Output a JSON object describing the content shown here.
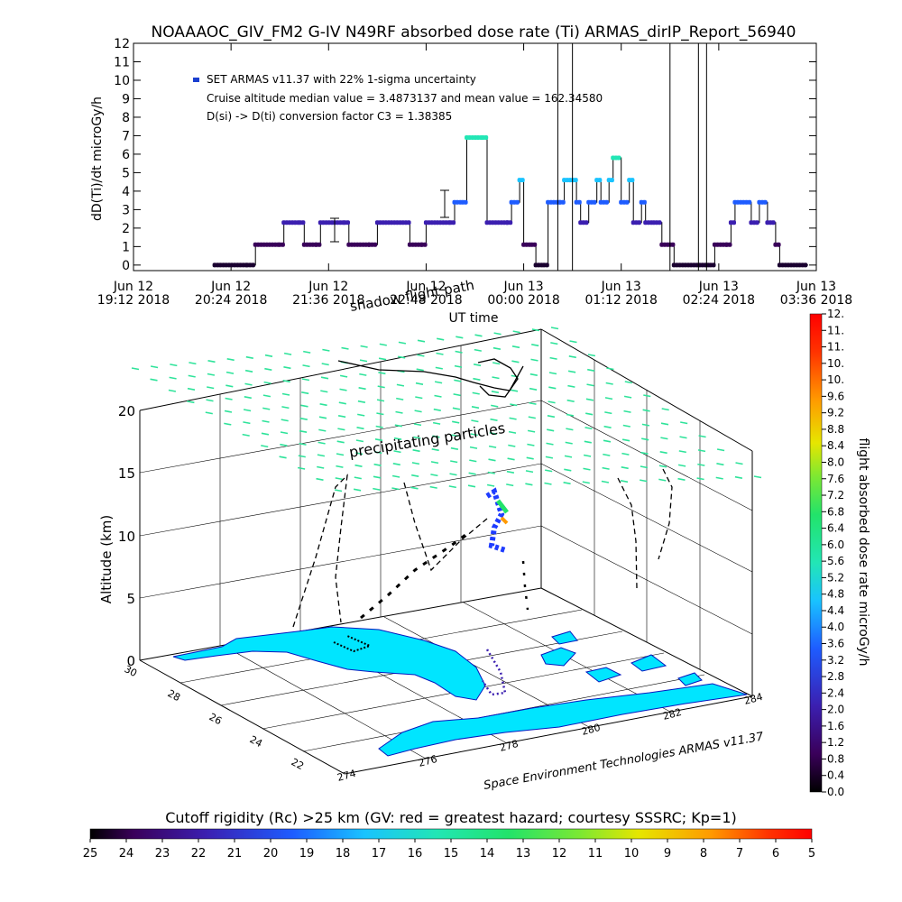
{
  "title": "NOAAAOC_GIV_FM2 G-IV    N49RF  absorbed dose rate (Ti) ARMAS_dirIP_Report_56940",
  "top_chart": {
    "ylabel": "dD(Ti)/dt microGy/h",
    "xlabel": "UT time",
    "legend": "SET ARMAS v11.37 with 22% 1-sigma uncertainty",
    "info_line1": "Cruise altitude median value = 3.4873137 and mean value = 162.34580",
    "info_line2": "D(si) -> D(ti) conversion factor C3 = 1.38385",
    "y_ticks": [
      "0",
      "1",
      "2",
      "3",
      "4",
      "5",
      "6",
      "7",
      "8",
      "9",
      "10",
      "11",
      "12"
    ],
    "x_ticks": [
      {
        "date": "Jun 12",
        "time": "19:12 2018"
      },
      {
        "date": "Jun 12",
        "time": "20:24 2018"
      },
      {
        "date": "Jun 12",
        "time": "21:36 2018"
      },
      {
        "date": "Jun 12",
        "time": "22:48 2018"
      },
      {
        "date": "Jun 13",
        "time": "00:00 2018"
      },
      {
        "date": "Jun 13",
        "time": "01:12 2018"
      },
      {
        "date": "Jun 13",
        "time": "02:24 2018"
      },
      {
        "date": "Jun 13",
        "time": "03:36 2018"
      }
    ]
  },
  "chart_data": {
    "type": "line",
    "title": "NOAAAOC_GIV_FM2 G-IV    N49RF  absorbed dose rate (Ti) ARMAS_dirIP_Report_56940",
    "xlabel": "UT time",
    "ylabel": "dD(Ti)/dt microGy/h",
    "x_unit": "hours UT from Jun 12 00:00 2018",
    "xlim": [
      19.2,
      27.6
    ],
    "ylim": [
      -0.3,
      12
    ],
    "series": [
      {
        "name": "SET ARMAS v11.37 with 22% 1-sigma uncertainty",
        "steps": [
          [
            20.2,
            0
          ],
          [
            20.6,
            0
          ],
          [
            20.7,
            1.1
          ],
          [
            21.0,
            1.1
          ],
          [
            21.05,
            2.3
          ],
          [
            21.25,
            2.3
          ],
          [
            21.3,
            1.1
          ],
          [
            21.45,
            1.1
          ],
          [
            21.5,
            2.3
          ],
          [
            21.8,
            2.3
          ],
          [
            21.85,
            1.1
          ],
          [
            22.1,
            1.1
          ],
          [
            22.2,
            2.3
          ],
          [
            22.55,
            2.3
          ],
          [
            22.6,
            1.1
          ],
          [
            22.75,
            1.1
          ],
          [
            22.8,
            2.3
          ],
          [
            23.1,
            2.3
          ],
          [
            23.15,
            3.4
          ],
          [
            23.25,
            3.4
          ],
          [
            23.3,
            6.9
          ],
          [
            23.5,
            6.9
          ],
          [
            23.55,
            2.3
          ],
          [
            23.8,
            2.3
          ],
          [
            23.85,
            3.4
          ],
          [
            23.95,
            4.6
          ],
          [
            24.0,
            1.1
          ],
          [
            24.1,
            1.1
          ],
          [
            24.15,
            0
          ],
          [
            24.25,
            0
          ],
          [
            24.3,
            3.4
          ],
          [
            24.45,
            3.4
          ],
          [
            24.5,
            4.6
          ],
          [
            24.65,
            3.4
          ],
          [
            24.7,
            2.3
          ],
          [
            24.8,
            3.4
          ],
          [
            24.9,
            4.6
          ],
          [
            24.95,
            3.4
          ],
          [
            25.05,
            4.6
          ],
          [
            25.1,
            5.8
          ],
          [
            25.2,
            3.4
          ],
          [
            25.3,
            4.6
          ],
          [
            25.35,
            2.3
          ],
          [
            25.45,
            3.4
          ],
          [
            25.5,
            2.3
          ],
          [
            25.6,
            2.3
          ],
          [
            25.7,
            1.1
          ],
          [
            25.8,
            1.1
          ],
          [
            25.85,
            0
          ],
          [
            26.3,
            0
          ],
          [
            26.35,
            1.1
          ],
          [
            26.5,
            1.1
          ],
          [
            26.55,
            2.3
          ],
          [
            26.6,
            3.4
          ],
          [
            26.8,
            2.3
          ],
          [
            26.9,
            3.4
          ],
          [
            27.0,
            2.3
          ],
          [
            27.1,
            1.1
          ],
          [
            27.15,
            0
          ],
          [
            27.5,
            0
          ]
        ]
      }
    ],
    "spikes_x": [
      24.42,
      24.6,
      25.8,
      26.15,
      26.25
    ],
    "colorbar": {
      "label": "flight absorbed dose rate microGy/h",
      "ticks": [
        "0.0",
        "0.4",
        "0.8",
        "1.2",
        "1.6",
        "2.0",
        "2.4",
        "2.8",
        "3.2",
        "3.6",
        "4.0",
        "4.4",
        "4.8",
        "5.2",
        "5.6",
        "6.0",
        "6.4",
        "6.8",
        "7.2",
        "7.6",
        "8.0",
        "8.4",
        "8.8",
        "9.2",
        "9.6",
        "10.",
        "10.",
        "11.",
        "11.",
        "12."
      ]
    }
  },
  "map3d": {
    "shadow_label": "shadow flight path",
    "precip_label": "precipitating particles",
    "zlabel": "Altitude (km)",
    "z_ticks": [
      "0",
      "5",
      "10",
      "15",
      "20"
    ],
    "lat_ticks": [
      "30",
      "28",
      "26",
      "24",
      "22"
    ],
    "lon_ticks": [
      "274",
      "276",
      "278",
      "280",
      "282",
      "284"
    ],
    "credit": "Space Environment Technologies ARMAS v11.37"
  },
  "bottom_bar": {
    "title": "Cutoff rigidity (Rc) >25 km (GV: red = greatest hazard; courtesy SSSRC; Kp=1)",
    "ticks": [
      "25",
      "24",
      "23",
      "22",
      "21",
      "20",
      "19",
      "18",
      "17",
      "16",
      "15",
      "14",
      "13",
      "12",
      "11",
      "10",
      "9",
      "8",
      "7",
      "6",
      "5"
    ]
  },
  "colors": {
    "dose_dot": "#1a3fd0",
    "line": "#000000",
    "land": "#00e5ff",
    "cutoff_marks": "#2ee39a"
  }
}
